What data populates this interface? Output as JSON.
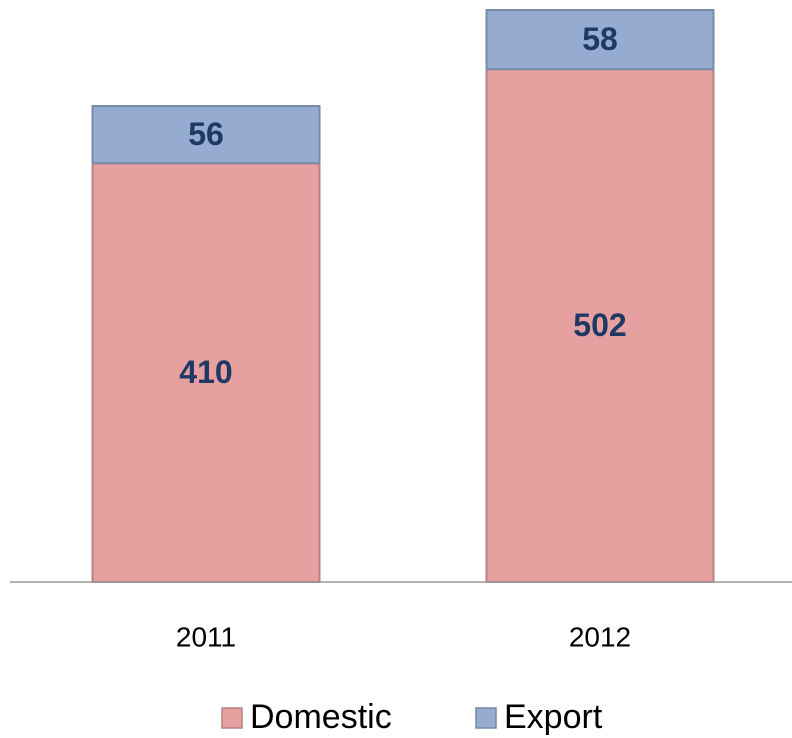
{
  "chart_data": {
    "type": "bar",
    "stacked": true,
    "categories": [
      "2011",
      "2012"
    ],
    "series": [
      {
        "name": "Domestic",
        "color": "#e6a0a0",
        "values": [
          410,
          502
        ]
      },
      {
        "name": "Export",
        "color": "#95acd0",
        "values": [
          56,
          58
        ]
      }
    ],
    "legend": "bottom"
  }
}
